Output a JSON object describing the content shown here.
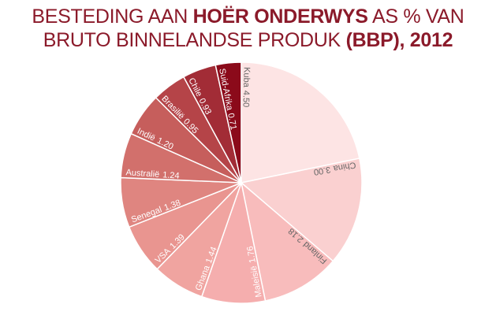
{
  "chart_data": {
    "type": "pie",
    "title": [
      "BESTEDING AAN ",
      "HOËR ONDERWYS",
      " AS % VAN",
      "BRUTO BINNELANDSE PRODUK ",
      "(BBP), 2012"
    ],
    "categories": [
      "Kuba",
      "China",
      "Finland",
      "Maleisië",
      "Ghana",
      "VSA",
      "Senegal",
      "Australië",
      "Indië",
      "Brasilië",
      "Chile",
      "Suid-Afrika"
    ],
    "values": [
      4.5,
      3.0,
      2.18,
      1.76,
      1.44,
      1.39,
      1.38,
      1.24,
      1.2,
      0.95,
      0.93,
      0.71
    ],
    "value_labels": [
      "4.50",
      "3.00",
      "2.18",
      "1.76",
      "1.44",
      "1.39",
      "1.38",
      "1.24",
      "1.20",
      "0.95",
      "0.93",
      "0.71"
    ],
    "colors": [
      "#fde4e4",
      "#fad0d0",
      "#f8bcbc",
      "#f5aeae",
      "#f0a4a0",
      "#e99590",
      "#df8580",
      "#d2706c",
      "#c65e5c",
      "#b54448",
      "#a22c36",
      "#8b0a1a"
    ]
  }
}
